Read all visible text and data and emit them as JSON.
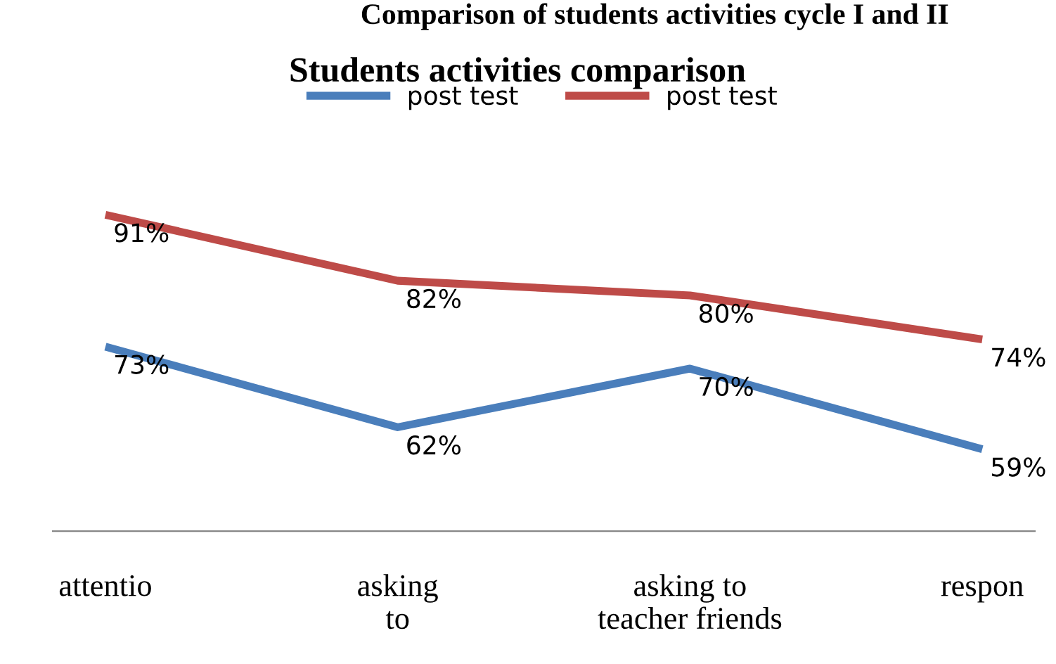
{
  "chart_data": {
    "type": "line",
    "title": "Students activities comparison",
    "annotations": [
      "Comparison of students activities cycle I and II"
    ],
    "categories": [
      "attentio",
      "asking\nto",
      "asking to\nteacher friends",
      "respon"
    ],
    "series": [
      {
        "name": "post test",
        "color": "#4a7ebb",
        "values": [
          73,
          62,
          70,
          59
        ],
        "value_labels": [
          "73%",
          "62%",
          "70%",
          "59%"
        ]
      },
      {
        "name": "post test",
        "color": "#be4b48",
        "values": [
          91,
          82,
          80,
          74
        ],
        "value_labels": [
          "91%",
          "82%",
          "80%",
          "74%"
        ]
      }
    ],
    "legend": "top",
    "grid": false,
    "marker": "none",
    "line_style": "solid"
  }
}
